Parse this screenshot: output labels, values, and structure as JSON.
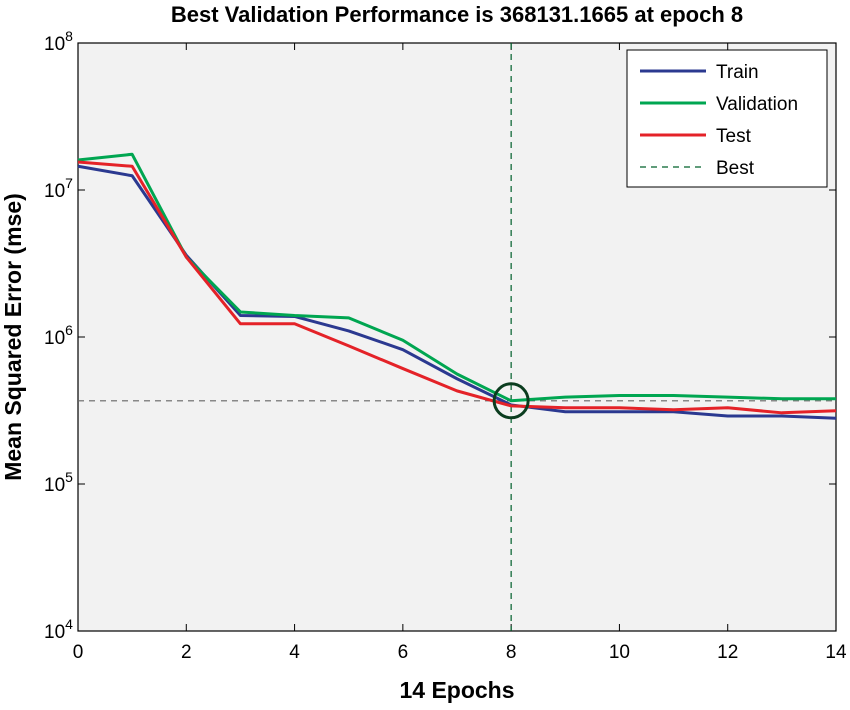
{
  "chart_data": {
    "type": "line",
    "title": "Best Validation Performance is 368131.1665 at epoch 8",
    "xlabel": "14 Epochs",
    "ylabel": "Mean Squared Error  (mse)",
    "xlim": [
      0,
      14
    ],
    "ylim": [
      10000,
      100000000
    ],
    "yscale": "log",
    "x_ticks": [
      0,
      2,
      4,
      6,
      8,
      10,
      12,
      14
    ],
    "y_ticks": [
      {
        "value": 10000,
        "base": "10",
        "exp": "4"
      },
      {
        "value": 100000,
        "base": "10",
        "exp": "5"
      },
      {
        "value": 1000000,
        "base": "10",
        "exp": "6"
      },
      {
        "value": 10000000,
        "base": "10",
        "exp": "7"
      },
      {
        "value": 100000000,
        "base": "10",
        "exp": "8"
      }
    ],
    "grid": false,
    "legend_position": "top-right",
    "x": [
      0,
      1,
      2,
      3,
      4,
      5,
      6,
      7,
      8,
      9,
      10,
      11,
      12,
      13,
      14
    ],
    "series": [
      {
        "name": "Train",
        "color": "#2b3990",
        "values": [
          14500000,
          12500000,
          3600000,
          1400000,
          1380000,
          1100000,
          820000,
          520000,
          345000,
          310000,
          310000,
          310000,
          290000,
          290000,
          280000
        ]
      },
      {
        "name": "Validation",
        "color": "#00a651",
        "values": [
          16000000,
          17500000,
          3500000,
          1480000,
          1400000,
          1350000,
          950000,
          560000,
          368131,
          390000,
          400000,
          400000,
          390000,
          380000,
          380000
        ]
      },
      {
        "name": "Test",
        "color": "#e42228",
        "values": [
          15500000,
          14500000,
          3500000,
          1230000,
          1230000,
          870000,
          610000,
          430000,
          340000,
          330000,
          330000,
          320000,
          330000,
          305000,
          315000
        ]
      }
    ],
    "best": {
      "label": "Best",
      "epoch": 8,
      "value": 368131.1665,
      "color": "#00602b",
      "marker_color": "#0b3d1f"
    }
  }
}
